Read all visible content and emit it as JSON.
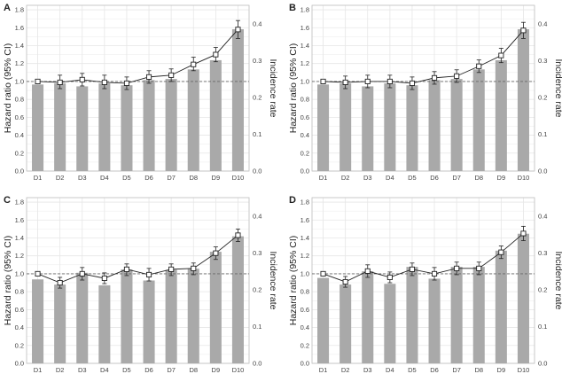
{
  "colors": {
    "bar": "#a9a9a9",
    "line": "#222222",
    "grid": "#e6e6e6",
    "panel_border": "#bdbdbd",
    "ref_line": "#666666"
  },
  "chart_data": [
    {
      "panel": "A",
      "type": "bar",
      "categories": [
        "D1",
        "D2",
        "D3",
        "D4",
        "D5",
        "D6",
        "D7",
        "D8",
        "D9",
        "D10"
      ],
      "ylabel": "Hazard ratio (95% CI)",
      "y2label": "Incidence rate",
      "ylim": [
        0,
        1.85
      ],
      "yticks": [
        "0.0",
        "0.2",
        "0.4",
        "0.6",
        "0.8",
        "1.0",
        "1.2",
        "1.4",
        "1.6",
        "1.8"
      ],
      "y2lim": [
        0,
        0.45
      ],
      "y2ticks": [
        "0.0",
        "0.1",
        "0.2",
        "0.3",
        "0.4"
      ],
      "reference_line": 1.0,
      "grid": true,
      "bars_incidence_rate": [
        0.235,
        0.238,
        0.23,
        0.238,
        0.233,
        0.247,
        0.25,
        0.276,
        0.301,
        0.385
      ],
      "hazard_ratio": [
        1.0,
        0.99,
        1.02,
        0.99,
        0.98,
        1.05,
        1.07,
        1.19,
        1.3,
        1.58
      ],
      "ci_lower": [
        1.0,
        0.92,
        0.95,
        0.92,
        0.91,
        0.98,
        1.0,
        1.12,
        1.22,
        1.48
      ],
      "ci_upper": [
        1.0,
        1.07,
        1.09,
        1.07,
        1.05,
        1.12,
        1.14,
        1.27,
        1.38,
        1.68
      ]
    },
    {
      "panel": "B",
      "type": "bar",
      "categories": [
        "D1",
        "D2",
        "D3",
        "D4",
        "D5",
        "D6",
        "D7",
        "D8",
        "D9",
        "D10"
      ],
      "ylabel": "Hazard ratio (95% CI)",
      "y2label": "Incidence rate",
      "ylim": [
        0,
        1.85
      ],
      "yticks": [
        "0.0",
        "0.2",
        "0.4",
        "0.6",
        "0.8",
        "1.0",
        "1.2",
        "1.4",
        "1.6",
        "1.8"
      ],
      "y2lim": [
        0,
        0.45
      ],
      "y2ticks": [
        "0.0",
        "0.1",
        "0.2",
        "0.3",
        "0.4"
      ],
      "reference_line": 1.0,
      "grid": true,
      "bars_incidence_rate": [
        0.235,
        0.238,
        0.23,
        0.238,
        0.233,
        0.247,
        0.25,
        0.276,
        0.301,
        0.385
      ],
      "hazard_ratio": [
        1.0,
        0.99,
        1.0,
        1.0,
        0.98,
        1.04,
        1.06,
        1.17,
        1.29,
        1.57
      ],
      "ci_lower": [
        1.0,
        0.92,
        0.93,
        0.93,
        0.91,
        0.97,
        0.99,
        1.1,
        1.21,
        1.48
      ],
      "ci_upper": [
        1.0,
        1.06,
        1.07,
        1.07,
        1.05,
        1.11,
        1.13,
        1.24,
        1.37,
        1.66
      ]
    },
    {
      "panel": "C",
      "type": "bar",
      "categories": [
        "D1",
        "D2",
        "D3",
        "D4",
        "D5",
        "D6",
        "D7",
        "D8",
        "D9",
        "D10"
      ],
      "ylabel": "Hazard ratio (95% CI)",
      "y2label": "Incidence rate",
      "ylim": [
        0,
        1.85
      ],
      "yticks": [
        "0.0",
        "0.2",
        "0.4",
        "0.6",
        "0.8",
        "1.0",
        "1.2",
        "1.4",
        "1.6",
        "1.8"
      ],
      "y2lim": [
        0,
        0.45
      ],
      "y2ticks": [
        "0.0",
        "0.1",
        "0.2",
        "0.3",
        "0.4"
      ],
      "reference_line": 1.0,
      "grid": true,
      "bars_incidence_rate": [
        0.228,
        0.214,
        0.246,
        0.212,
        0.255,
        0.225,
        0.254,
        0.257,
        0.303,
        0.345
      ],
      "hazard_ratio": [
        1.0,
        0.9,
        1.0,
        0.95,
        1.05,
        0.99,
        1.05,
        1.06,
        1.23,
        1.43
      ],
      "ci_lower": [
        1.0,
        0.84,
        0.93,
        0.89,
        0.98,
        0.92,
        0.98,
        0.99,
        1.16,
        1.36
      ],
      "ci_upper": [
        1.0,
        0.96,
        1.07,
        1.01,
        1.11,
        1.06,
        1.11,
        1.12,
        1.3,
        1.5
      ]
    },
    {
      "panel": "D",
      "type": "bar",
      "categories": [
        "D1",
        "D2",
        "D3",
        "D4",
        "D5",
        "D6",
        "D7",
        "D8",
        "D9",
        "D10"
      ],
      "ylabel": "Hazard ratio (95% CI)",
      "y2label": "Incidence rate",
      "ylim": [
        0,
        1.85
      ],
      "yticks": [
        "0.0",
        "0.2",
        "0.4",
        "0.6",
        "0.8",
        "1.0",
        "1.2",
        "1.4",
        "1.6",
        "1.8"
      ],
      "y2lim": [
        0,
        0.45
      ],
      "y2ticks": [
        "0.0",
        "0.1",
        "0.2",
        "0.3",
        "0.4"
      ],
      "reference_line": 1.0,
      "grid": true,
      "bars_incidence_rate": [
        0.232,
        0.214,
        0.25,
        0.216,
        0.262,
        0.23,
        0.262,
        0.262,
        0.306,
        0.352
      ],
      "hazard_ratio": [
        1.0,
        0.91,
        1.03,
        0.96,
        1.05,
        1.0,
        1.06,
        1.06,
        1.24,
        1.45
      ],
      "ci_lower": [
        1.0,
        0.85,
        0.96,
        0.9,
        0.98,
        0.93,
        0.99,
        0.99,
        1.17,
        1.37
      ],
      "ci_upper": [
        1.0,
        0.97,
        1.1,
        1.02,
        1.12,
        1.07,
        1.13,
        1.13,
        1.31,
        1.53
      ]
    }
  ]
}
